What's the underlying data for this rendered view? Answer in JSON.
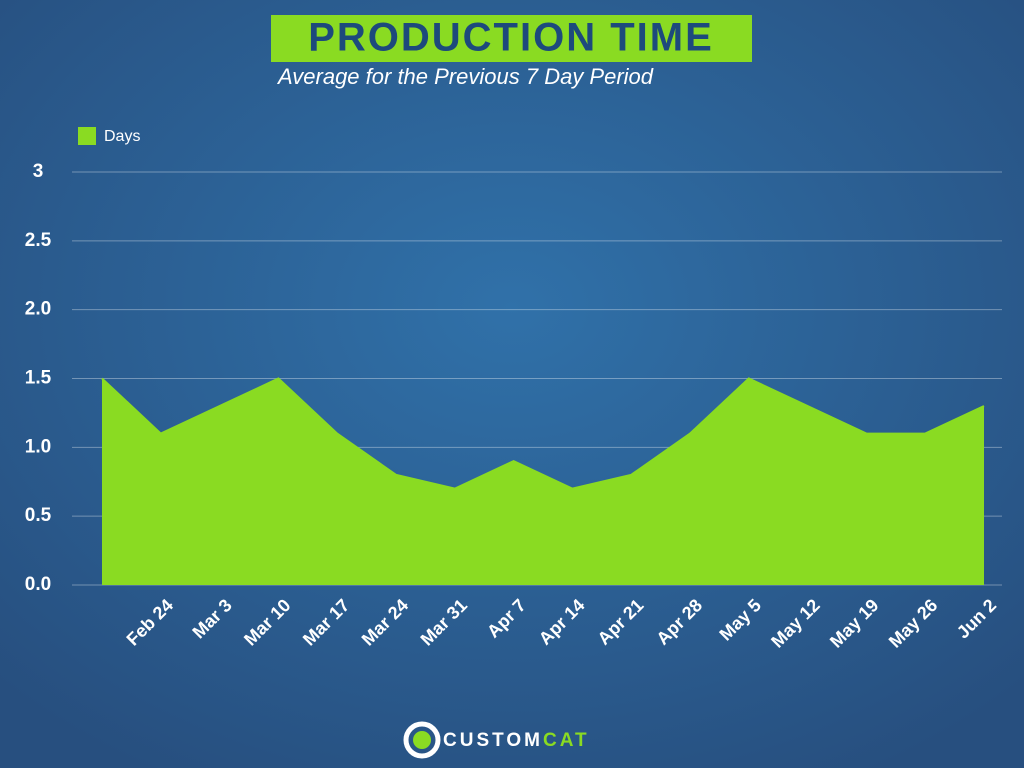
{
  "chart_data": {
    "type": "area",
    "title": "PRODUCTION TIME",
    "subtitle": "Average for the Previous 7 Day Period",
    "categories": [
      null,
      "Feb 24",
      "Mar 3",
      "Mar 10",
      "Mar 17",
      "Mar 24",
      "Mar 31",
      "Apr 7",
      "Apr 14",
      "Apr 21",
      "Apr 28",
      "May 5",
      "May 12",
      "May 19",
      "May 26",
      "Jun 2"
    ],
    "series": [
      {
        "name": "Days",
        "color": "#8adb22",
        "values": [
          1.5,
          1.1,
          1.3,
          1.5,
          1.1,
          0.8,
          0.7,
          0.9,
          0.7,
          0.8,
          1.1,
          1.5,
          1.3,
          1.1,
          1.1,
          1.3
        ]
      }
    ],
    "ylim": [
      0,
      3
    ],
    "yticks": [
      {
        "value": 0,
        "label": "0.0"
      },
      0.5,
      {
        "value": 1,
        "label": "1.0"
      },
      1.5,
      {
        "value": 2,
        "label": "2.0"
      },
      2.5,
      3
    ],
    "grid": true,
    "legend": "top-left",
    "brand": [
      "CUSTOM",
      "CAT"
    ]
  }
}
